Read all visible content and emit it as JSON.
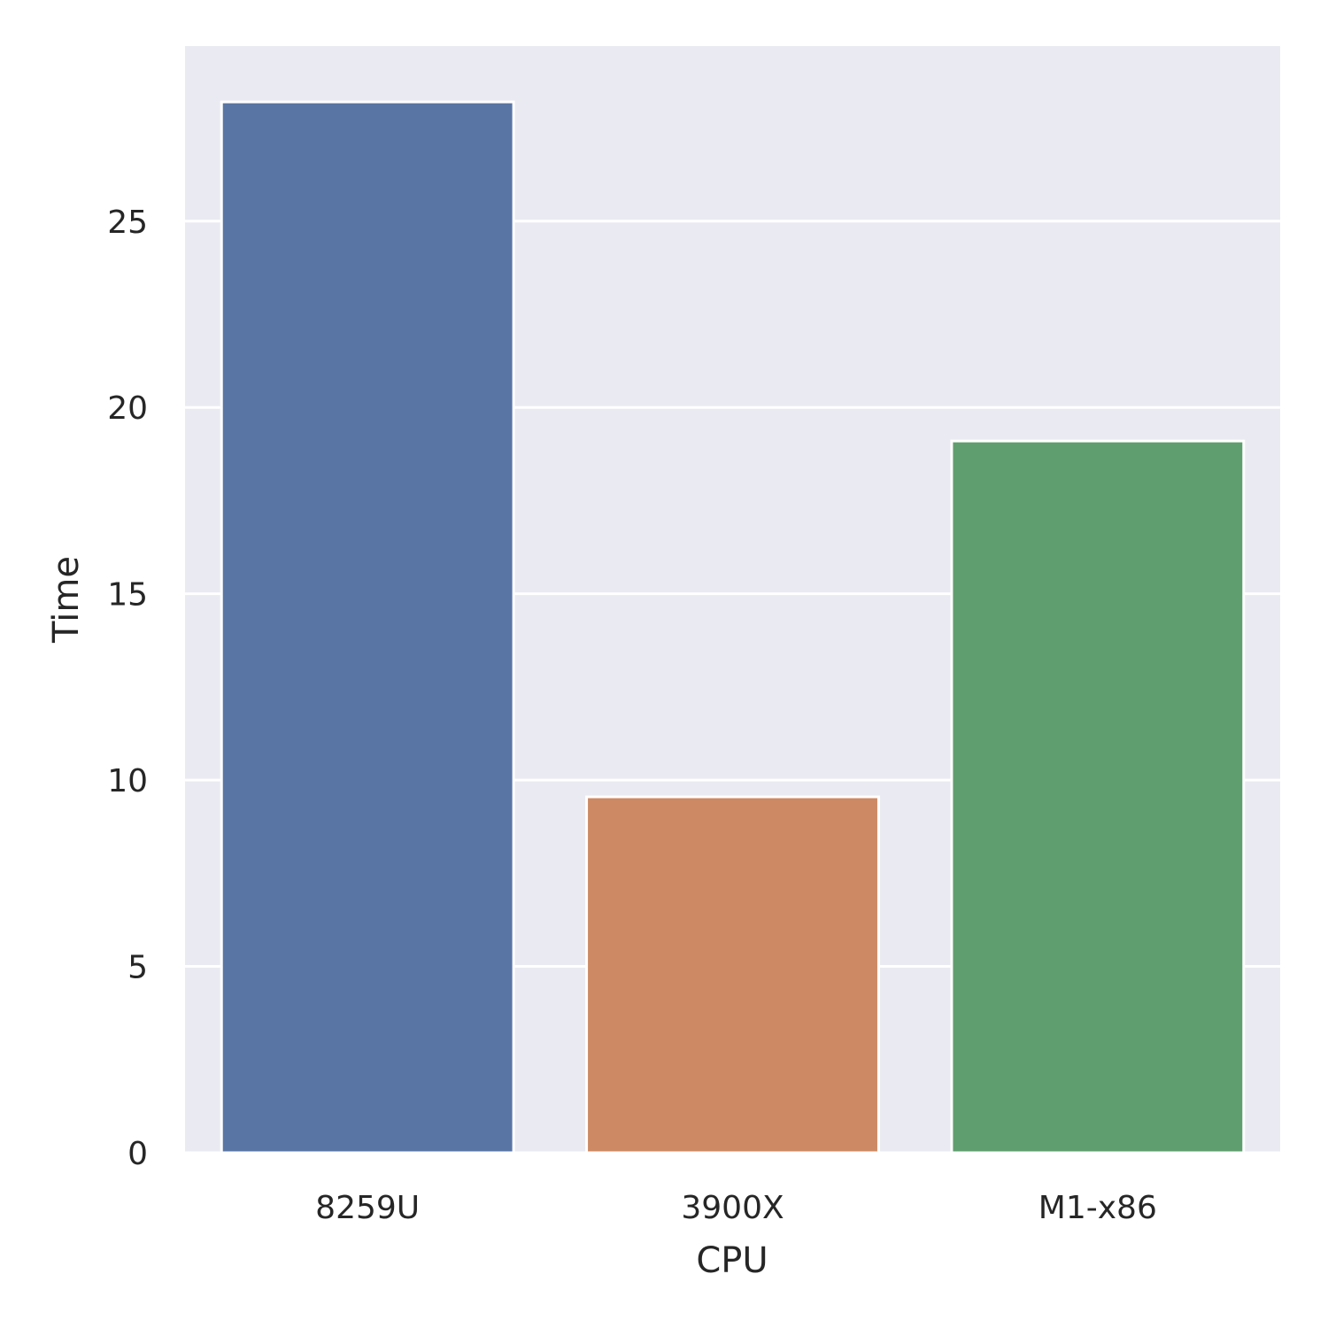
{
  "chart_data": {
    "type": "bar",
    "categories": [
      "8259U",
      "3900X",
      "M1-x86"
    ],
    "values": [
      28.2,
      9.55,
      19.1
    ],
    "bar_colors": [
      "#5975a4",
      "#cc8963",
      "#5f9e6e"
    ],
    "xlabel": "CPU",
    "ylabel": "Time",
    "ylim": [
      0,
      29.7
    ],
    "yticks": [
      0,
      5,
      10,
      15,
      20,
      25
    ],
    "grid": true,
    "background_color": "#eaeaf2",
    "grid_color": "#ffffff"
  }
}
